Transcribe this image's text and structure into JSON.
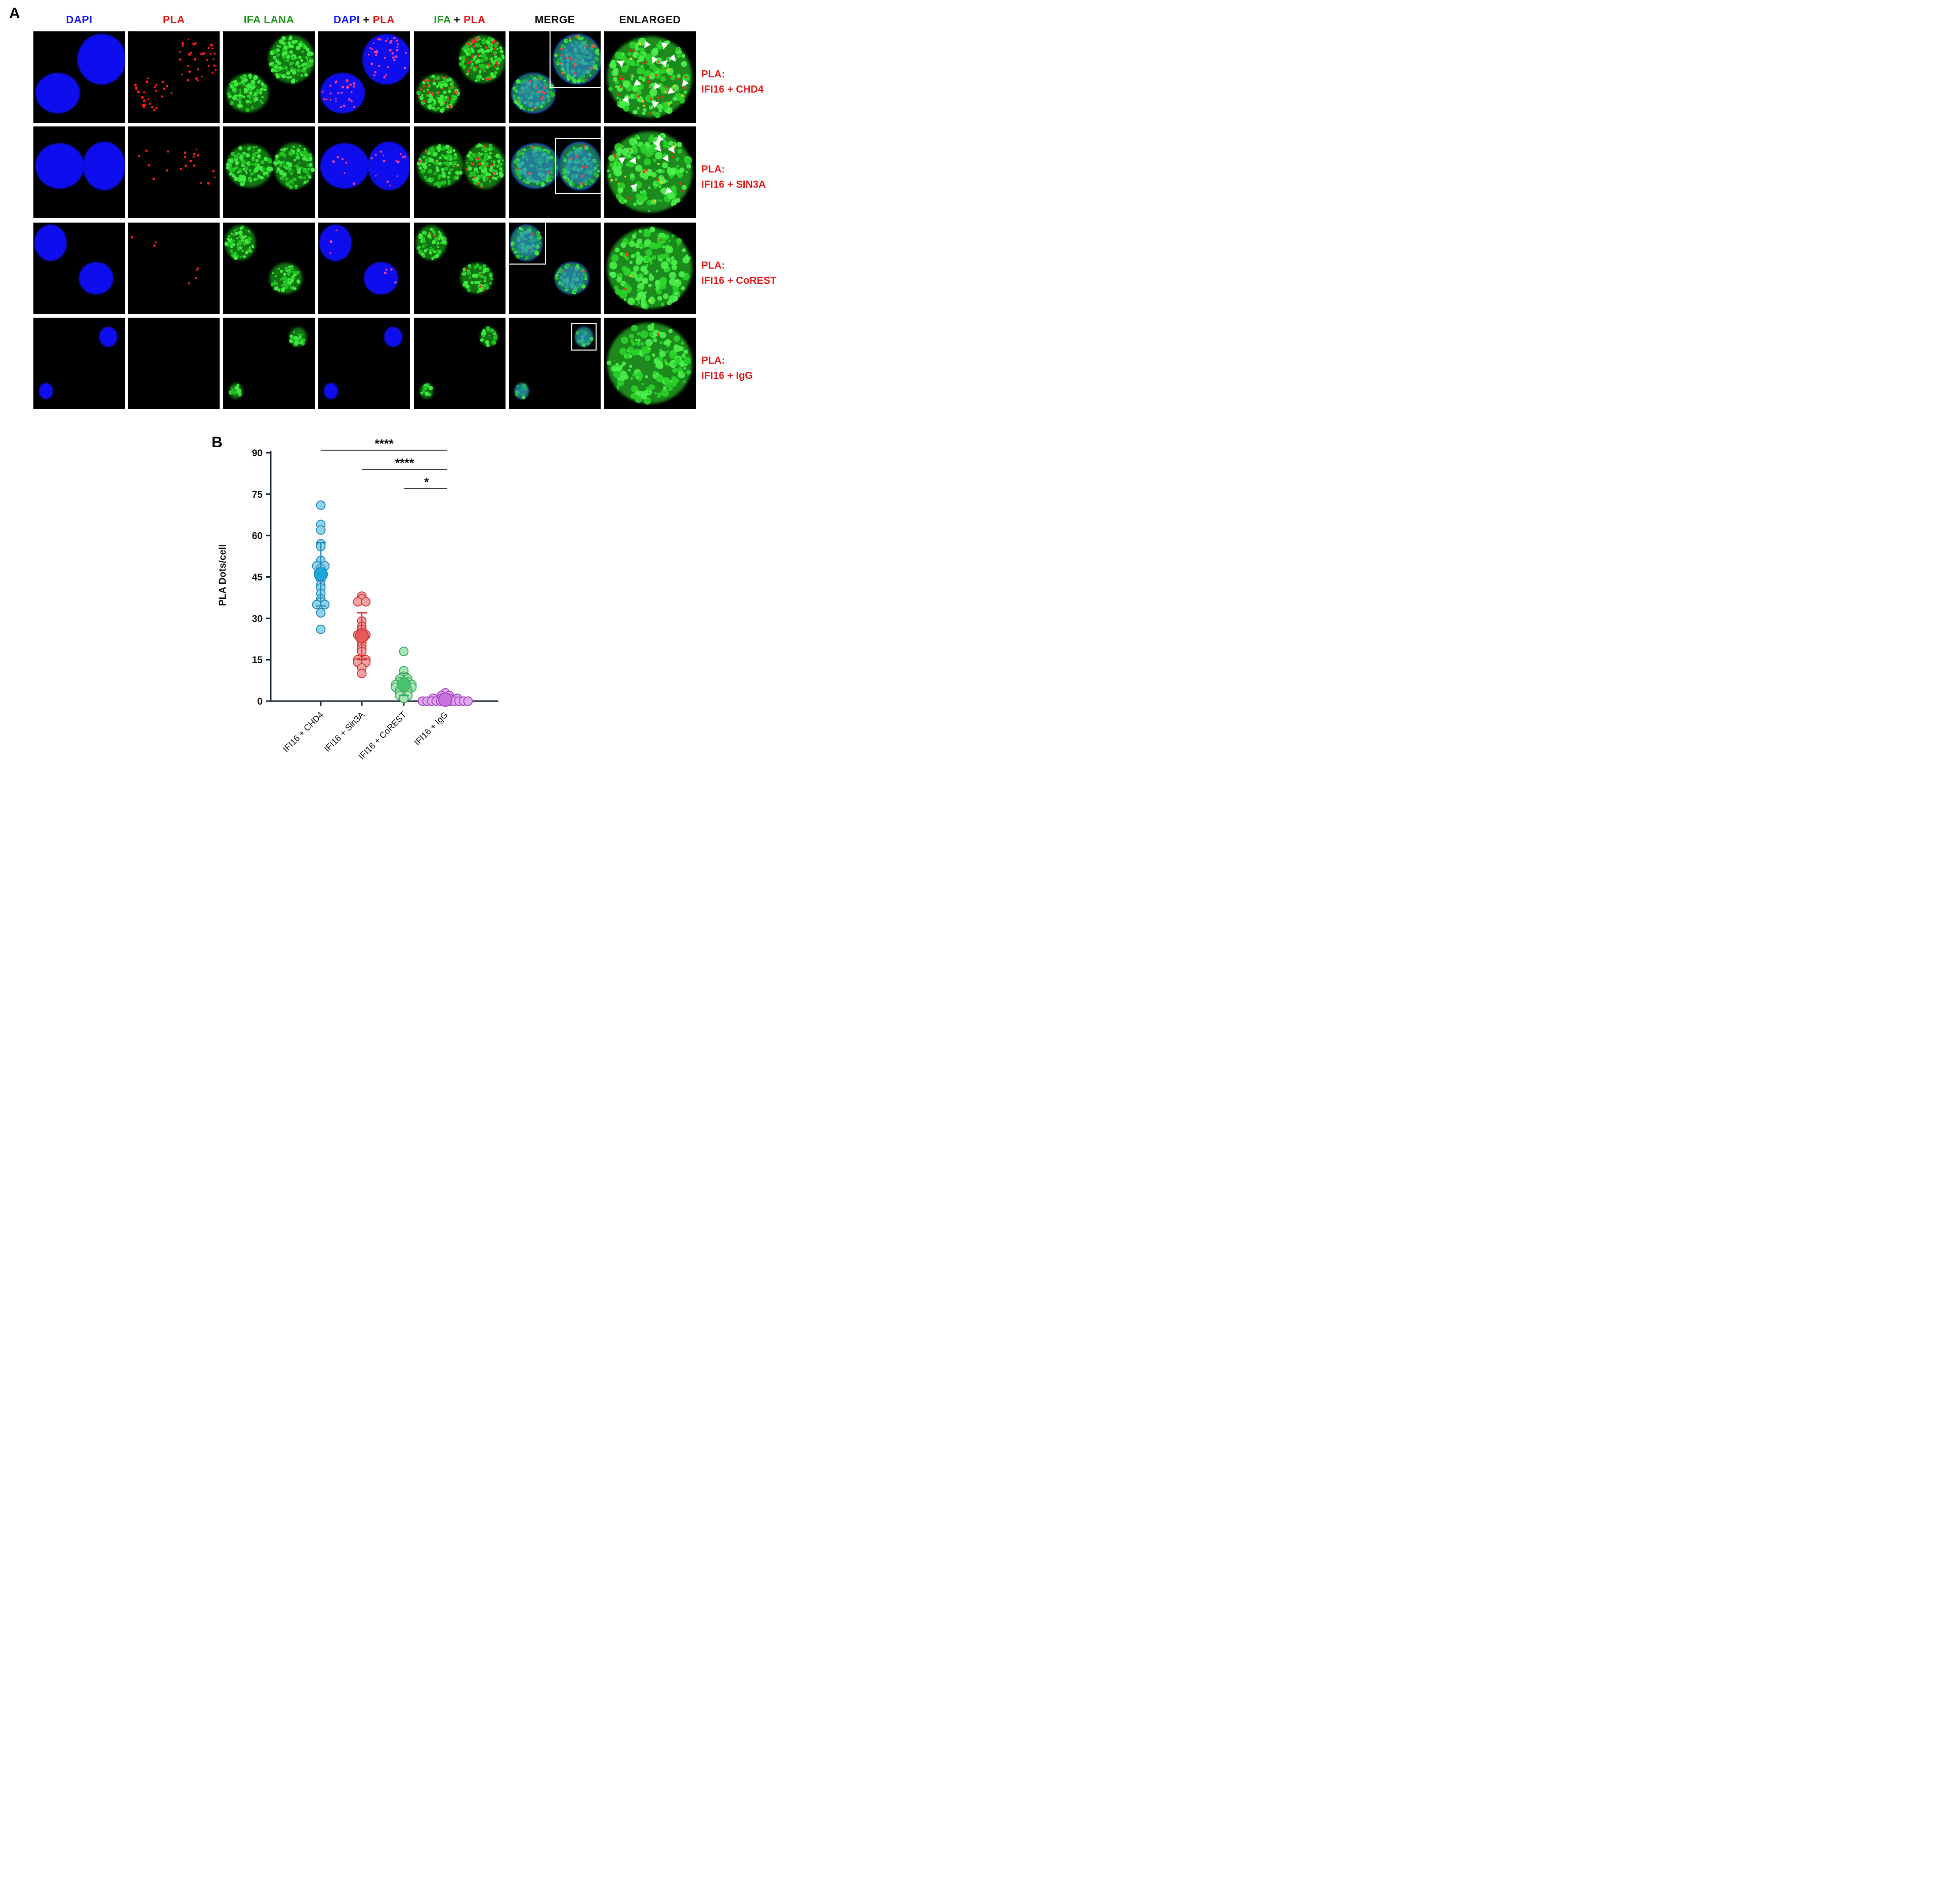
{
  "panel_a": {
    "letter": "A",
    "headers": [
      {
        "parts": [
          {
            "text": "DAPI",
            "color": "#1a1aff"
          }
        ]
      },
      {
        "parts": [
          {
            "text": "PLA",
            "color": "#e41b1b"
          }
        ]
      },
      {
        "parts": [
          {
            "text": "IFA LANA",
            "color": "#1f9a1f"
          }
        ]
      },
      {
        "parts": [
          {
            "text": "DAPI",
            "color": "#1a1aff"
          },
          {
            "text": " + ",
            "color": "#111111"
          },
          {
            "text": "PLA",
            "color": "#e41b1b"
          }
        ]
      },
      {
        "parts": [
          {
            "text": "IFA",
            "color": "#1f9a1f"
          },
          {
            "text": " + ",
            "color": "#111111"
          },
          {
            "text": "PLA",
            "color": "#e41b1b"
          }
        ]
      },
      {
        "parts": [
          {
            "text": "MERGE",
            "color": "#111111"
          }
        ]
      },
      {
        "parts": [
          {
            "text": "ENLARGED",
            "color": "#111111"
          }
        ]
      }
    ],
    "rows": [
      {
        "line1": "PLA:",
        "line2": "IFI16 + CHD4"
      },
      {
        "line1": "PLA:",
        "line2": "IFI16 + SIN3A"
      },
      {
        "line1": "PLA:",
        "line2": "IFI16 + CoREST"
      },
      {
        "line1": "PLA:",
        "line2": "IFI16 + IgG"
      }
    ]
  },
  "panel_b": {
    "letter": "B"
  },
  "chart_data": {
    "type": "scatter",
    "title": "",
    "xlabel": "",
    "ylabel": "PLA Dots/cell",
    "ylim": [
      0,
      90
    ],
    "yticks": [
      0,
      15,
      30,
      45,
      60,
      75,
      90
    ],
    "categories": [
      "IFI16 + CHD4",
      "IFI16 + Sin3A",
      "IFI16 + CoREST",
      "IFI16 + IgG"
    ],
    "colors": [
      {
        "fill": "#8fd3ec",
        "stroke": "#2a8ab8",
        "mean": "#1aa7dc"
      },
      {
        "fill": "#f4a3a3",
        "stroke": "#d23b3b",
        "mean": "#e85a5a"
      },
      {
        "fill": "#a8e6b8",
        "stroke": "#3fae62",
        "mean": "#4dc275"
      },
      {
        "fill": "#e3a6f0",
        "stroke": "#a04bbd",
        "mean": "#c874e0"
      }
    ],
    "series": [
      {
        "name": "IFI16 + CHD4",
        "mean": 46,
        "sd": 11.5,
        "values": [
          71,
          64,
          62,
          57,
          56,
          51,
          49,
          49,
          48,
          47,
          46,
          45,
          44,
          42,
          41,
          39,
          37,
          36,
          35,
          35,
          32,
          26
        ]
      },
      {
        "name": "IFI16 + Sin3A",
        "mean": 23.5,
        "sd": 8.5,
        "values": [
          38,
          37,
          36,
          36,
          29,
          27,
          26,
          25,
          24,
          24,
          23,
          22,
          21,
          20,
          19,
          18,
          15,
          15,
          14,
          14,
          12,
          10
        ]
      },
      {
        "name": "IFI16 + CoREST",
        "mean": 6,
        "sd": 4,
        "values": [
          18,
          11,
          9,
          8,
          8,
          7,
          7,
          6,
          6,
          6,
          5,
          5,
          5,
          4,
          4,
          3,
          3,
          2,
          2,
          1
        ]
      },
      {
        "name": "IFI16 + IgG",
        "mean": 0.5,
        "sd": 0.8,
        "values": [
          3,
          2,
          2,
          1,
          1,
          1,
          1,
          0,
          0,
          0,
          0,
          0,
          0,
          0,
          0,
          0,
          0,
          0
        ]
      }
    ],
    "significance": [
      {
        "from": 0,
        "to": 3,
        "label": "****"
      },
      {
        "from": 1,
        "to": 3,
        "label": "****"
      },
      {
        "from": 2,
        "to": 3,
        "label": "*"
      }
    ]
  }
}
